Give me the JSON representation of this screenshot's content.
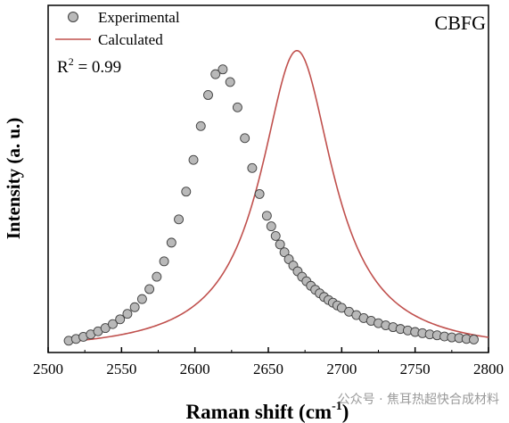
{
  "chart_data": {
    "type": "scatter",
    "title": "",
    "panel_label": "CBFG",
    "annotation": {
      "base": "R",
      "sup": "2",
      "rest": " = 0.99"
    },
    "xlabel": {
      "main": "Raman shift (cm",
      "sup": "-1",
      "end": ")"
    },
    "ylabel": "Intensity (a. u.)",
    "xlim": [
      2500,
      2800
    ],
    "ylim": [
      0,
      1.15
    ],
    "xticks": [
      "2500",
      "2550",
      "2600",
      "2650",
      "2700",
      "2750",
      "2800"
    ],
    "y_tick_labels_shown": false,
    "grid": false,
    "legend": {
      "placement": "top-left"
    },
    "series": [
      {
        "name": "Experimental",
        "kind": "markers",
        "marker": "circle",
        "color": "#b9b9b9",
        "edge_color": "#404040",
        "x": [
          2514,
          2519,
          2524,
          2529,
          2534,
          2539,
          2544,
          2549,
          2554,
          2559,
          2564,
          2569,
          2574,
          2579,
          2584,
          2589,
          2594,
          2599,
          2604,
          2609,
          2614,
          2619,
          2624,
          2629,
          2634,
          2639,
          2644,
          2649,
          2652,
          2655,
          2658,
          2661,
          2664,
          2667,
          2670,
          2673,
          2676,
          2679,
          2682,
          2685,
          2688,
          2691,
          2694,
          2697,
          2700,
          2705,
          2710,
          2715,
          2720,
          2725,
          2730,
          2735,
          2740,
          2745,
          2750,
          2755,
          2760,
          2765,
          2770,
          2775,
          2780,
          2785,
          2790
        ],
        "y": [
          0.039,
          0.045,
          0.052,
          0.06,
          0.07,
          0.081,
          0.094,
          0.11,
          0.128,
          0.15,
          0.177,
          0.21,
          0.251,
          0.302,
          0.364,
          0.441,
          0.533,
          0.638,
          0.75,
          0.853,
          0.922,
          0.938,
          0.896,
          0.812,
          0.71,
          0.611,
          0.525,
          0.453,
          0.418,
          0.386,
          0.358,
          0.332,
          0.309,
          0.288,
          0.269,
          0.251,
          0.236,
          0.221,
          0.208,
          0.196,
          0.184,
          0.174,
          0.165,
          0.156,
          0.148,
          0.135,
          0.124,
          0.114,
          0.105,
          0.097,
          0.09,
          0.084,
          0.078,
          0.073,
          0.068,
          0.064,
          0.06,
          0.057,
          0.053,
          0.05,
          0.048,
          0.045,
          0.043
        ]
      },
      {
        "name": "Calculated",
        "kind": "line",
        "color": "#c0504d",
        "model": "lorentzian",
        "center": 2669.5,
        "fwhm": 60,
        "amplitude": 1.0,
        "baseline": 0.0,
        "x_range": [
          2512,
          2800
        ]
      }
    ]
  },
  "watermark": "公众号 · 焦耳热超快合成材料"
}
